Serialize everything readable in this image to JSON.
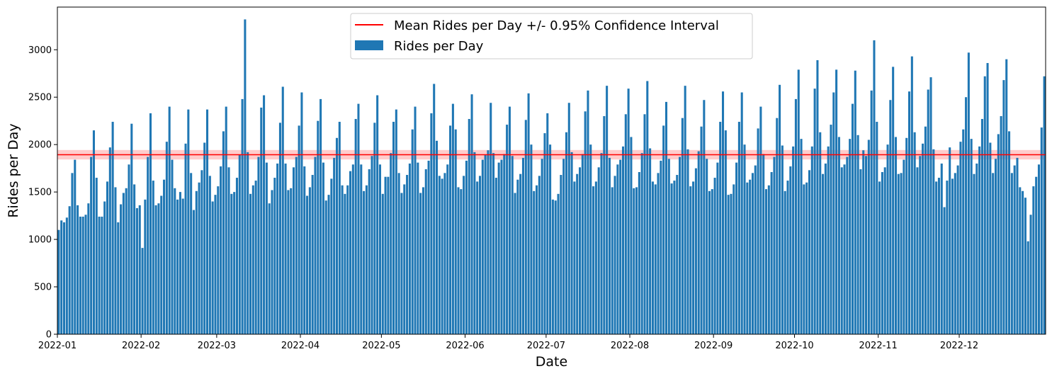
{
  "chart_data": {
    "type": "bar",
    "xlabel": "Date",
    "ylabel": "Rides per Day",
    "ylim": [
      0,
      3450
    ],
    "yticks": [
      0,
      500,
      1000,
      1500,
      2000,
      2500,
      3000
    ],
    "x_start": "2022-01-01",
    "x_end": "2022-12-31",
    "xticks": [
      "2022-01",
      "2022-02",
      "2022-03",
      "2022-04",
      "2022-05",
      "2022-06",
      "2022-07",
      "2022-08",
      "2022-09",
      "2022-10",
      "2022-11",
      "2022-12"
    ],
    "grid": false,
    "legend_position": "top-center",
    "legend": [
      {
        "label": "Mean Rides per Day +/- 0.95% Confidence Interval",
        "type": "line",
        "color": "#ff0000"
      },
      {
        "label": "Rides per Day",
        "type": "bar",
        "color": "#1f77b4"
      }
    ],
    "mean": 1893,
    "ci": [
      1843,
      1943
    ],
    "series": [
      {
        "name": "Rides per Day",
        "color": "#1f77b4",
        "values": [
          1100,
          1200,
          1180,
          1230,
          1350,
          1700,
          1840,
          1360,
          1240,
          1240,
          1260,
          1380,
          1870,
          2150,
          1650,
          1240,
          1240,
          1400,
          1610,
          1970,
          2240,
          1550,
          1180,
          1370,
          1490,
          1540,
          1790,
          2220,
          1580,
          1330,
          1360,
          910,
          1420,
          1870,
          2330,
          1620,
          1360,
          1380,
          1460,
          1630,
          2030,
          2400,
          1840,
          1540,
          1420,
          1500,
          1430,
          2010,
          2370,
          1700,
          1310,
          1510,
          1600,
          1730,
          2020,
          2370,
          1670,
          1400,
          1470,
          1560,
          1770,
          2140,
          2400,
          1760,
          1480,
          1500,
          1650,
          1890,
          2480,
          3320,
          1920,
          1480,
          1570,
          1620,
          1870,
          2390,
          2520,
          1810,
          1380,
          1520,
          1650,
          1800,
          2230,
          2610,
          1800,
          1520,
          1540,
          1760,
          1870,
          2200,
          2550,
          1770,
          1460,
          1550,
          1680,
          1870,
          2250,
          2480,
          1810,
          1410,
          1470,
          1640,
          1860,
          2070,
          2240,
          1570,
          1480,
          1570,
          1720,
          1790,
          2270,
          2430,
          1790,
          1510,
          1570,
          1740,
          1880,
          2230,
          2520,
          1790,
          1480,
          1660,
          1660,
          1910,
          2240,
          2370,
          1700,
          1490,
          1580,
          1680,
          1800,
          2160,
          2400,
          1810,
          1490,
          1550,
          1740,
          1830,
          2330,
          2640,
          2040,
          1670,
          1640,
          1700,
          1790,
          2200,
          2430,
          2160,
          1550,
          1530,
          1670,
          1830,
          2270,
          2530,
          1920,
          1610,
          1670,
          1840,
          1890,
          1940,
          2440,
          1910,
          1650,
          1810,
          1840,
          1900,
          2210,
          2400,
          1880,
          1490,
          1630,
          1690,
          1860,
          2260,
          2540,
          2000,
          1510,
          1570,
          1670,
          1850,
          2120,
          2330,
          2000,
          1420,
          1410,
          1480,
          1680,
          1850,
          2130,
          2440,
          1920,
          1610,
          1690,
          1760,
          1900,
          2350,
          2570,
          2000,
          1560,
          1610,
          1760,
          1910,
          2300,
          2620,
          1860,
          1550,
          1670,
          1790,
          1840,
          1980,
          2320,
          2590,
          2080,
          1540,
          1550,
          1710,
          1910,
          2320,
          2670,
          1960,
          1610,
          1580,
          1700,
          1830,
          2200,
          2450,
          1850,
          1590,
          1620,
          1680,
          1870,
          2280,
          2620,
          1950,
          1560,
          1610,
          1750,
          1930,
          2190,
          2470,
          1850,
          1510,
          1530,
          1650,
          1810,
          2240,
          2560,
          2150,
          1470,
          1480,
          1580,
          1810,
          2240,
          2550,
          2000,
          1600,
          1630,
          1700,
          1780,
          2170,
          2400,
          1900,
          1530,
          1570,
          1710,
          1870,
          2280,
          2630,
          1990,
          1510,
          1620,
          1770,
          1980,
          2480,
          2790,
          2060,
          1580,
          1600,
          1730,
          1980,
          2590,
          2890,
          2130,
          1690,
          1800,
          1980,
          2210,
          2550,
          2790,
          2080,
          1760,
          1790,
          1870,
          2060,
          2430,
          2780,
          2100,
          1740,
          1940,
          1880,
          2050,
          2570,
          3100,
          2240,
          1610,
          1710,
          1760,
          2000,
          2470,
          2820,
          2080,
          1690,
          1700,
          1840,
          2070,
          2560,
          2930,
          2130,
          1760,
          1880,
          2010,
          2190,
          2580,
          2710,
          1950,
          1610,
          1650,
          1800,
          1340,
          1620,
          1970,
          1640,
          1700,
          1780,
          2030,
          2160,
          2500,
          2970,
          2060,
          1690,
          1800,
          1980,
          2270,
          2720,
          2860,
          2020,
          1700,
          1850,
          2110,
          2300,
          2680,
          2900,
          2140,
          1700,
          1780,
          1860,
          1550,
          1510,
          1440,
          980,
          1260,
          1560,
          1660,
          1790,
          2180,
          2720
        ]
      }
    ]
  }
}
